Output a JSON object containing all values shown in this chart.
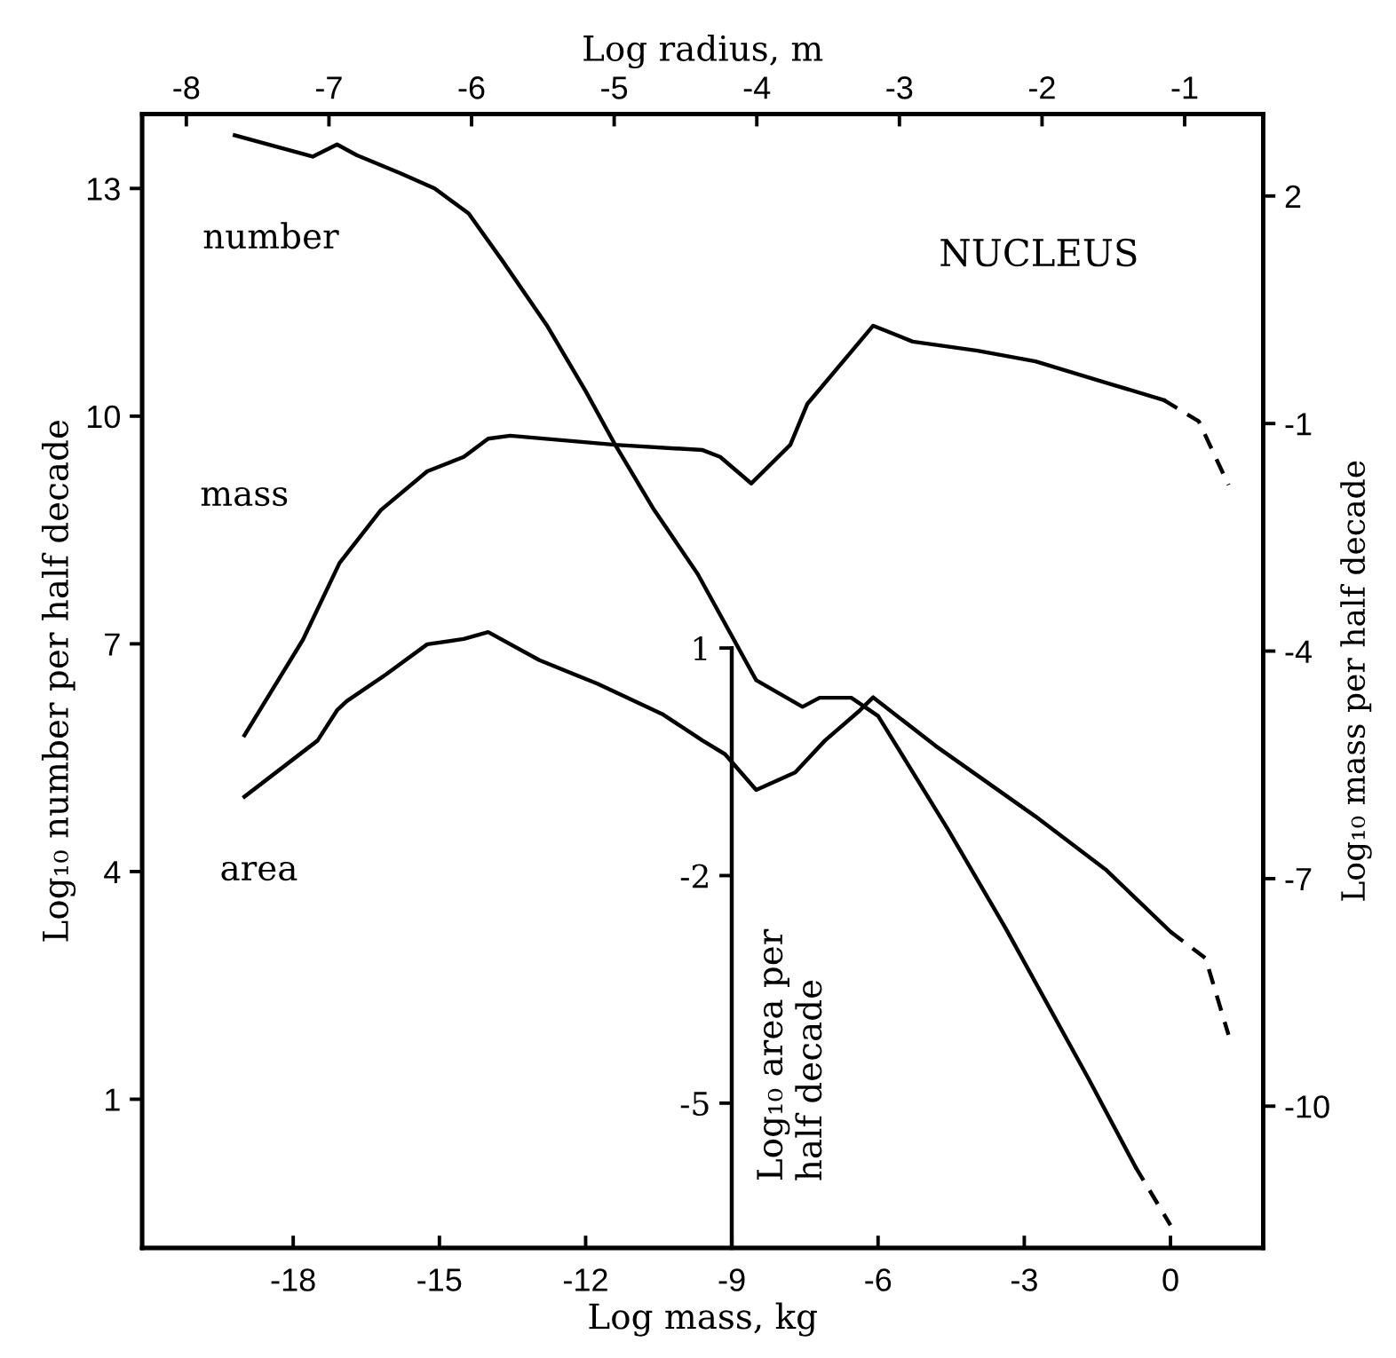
{
  "chart_data": {
    "type": "line",
    "xlabel": "Log mass, kg",
    "x2label": "Log radius, m",
    "ylabel": "Log₁₀ number per half decade",
    "y2label": "Log₁₀ mass per half decade",
    "y3label": "Log₁₀ area per\nhalf decade",
    "xlim": [
      -21.1,
      1.9
    ],
    "xticks": [
      -18,
      -15,
      -12,
      -9,
      -6,
      -3,
      0
    ],
    "x2lim": [
      -8.31,
      -0.45
    ],
    "x2ticks": [
      -8,
      -7,
      -6,
      -5,
      -4,
      -3,
      -2,
      -1
    ],
    "ylim": [
      -0.96,
      13.98
    ],
    "yticks": [
      1,
      4,
      7,
      10,
      13
    ],
    "y2lim": [
      -11.87,
      3.08
    ],
    "y2ticks": [
      -10,
      -7,
      -4,
      -1,
      2
    ],
    "y3lim": [
      -6.91,
      8.04
    ],
    "y3ticks": [
      -5,
      -2,
      1
    ],
    "annotations": [
      "NUCLEUS"
    ],
    "grid": false,
    "legend": false,
    "marker": "none",
    "series": [
      {
        "name": "number",
        "color": "#000000",
        "line_style": "solid",
        "x": [
          -19.2,
          -17.6,
          -17.1,
          -16.7,
          -15.8,
          -15.1,
          -14.4,
          -13.7,
          -12.8,
          -12.0,
          -11.4,
          -10.6,
          -9.7,
          -8.5,
          -7.55,
          -7.2,
          -6.55,
          -6.0,
          -4.57,
          -3.38,
          -1.69,
          -0.72
        ],
        "values": [
          13.7,
          13.42,
          13.58,
          13.44,
          13.2,
          13.0,
          12.67,
          12.04,
          11.2,
          10.33,
          9.63,
          8.77,
          7.92,
          6.52,
          6.17,
          6.29,
          6.29,
          6.05,
          4.56,
          3.25,
          1.28,
          0.11
        ]
      },
      {
        "color": "#000000",
        "line_style": "dashed",
        "x": [
          -0.72,
          0
        ],
        "values": [
          0.11,
          -0.66
        ]
      },
      {
        "name": "mass",
        "color": "#000000",
        "line_style": "solid",
        "axis": "y2",
        "x": [
          -19.0,
          -17.8,
          -17.05,
          -16.2,
          -15.25,
          -14.5,
          -14.0,
          -13.55,
          -11.4,
          -9.6,
          -9.24,
          -8.6,
          -7.8,
          -7.45,
          -6.1,
          -5.29,
          -3.96,
          -2.77,
          -1.33,
          -0.14
        ],
        "values": [
          -5.11,
          -3.85,
          -2.84,
          -2.14,
          -1.63,
          -1.44,
          -1.2,
          -1.16,
          -1.28,
          -1.35,
          -1.44,
          -1.79,
          -1.28,
          -0.74,
          0.29,
          0.08,
          -0.04,
          -0.18,
          -0.46,
          -0.69
        ]
      },
      {
        "color": "#000000",
        "line_style": "dashed",
        "axis": "y2",
        "x": [
          -0.14,
          0.58,
          1.19
        ],
        "values": [
          -0.69,
          -0.97,
          -1.81
        ]
      },
      {
        "name": "area",
        "color": "#000000",
        "line_style": "solid",
        "axis": "y3",
        "x": [
          -19.0,
          -17.5,
          -17.1,
          -16.9,
          -16.1,
          -15.25,
          -14.5,
          -14.0,
          -12.95,
          -11.76,
          -10.43,
          -9.6,
          -9.14,
          -8.5,
          -7.7,
          -7.09,
          -6.37,
          -6.1,
          -4.82,
          -2.77,
          -1.33,
          0
        ],
        "values": [
          -0.96,
          -0.22,
          0.18,
          0.3,
          0.65,
          1.05,
          1.12,
          1.21,
          0.84,
          0.53,
          0.13,
          -0.22,
          -0.4,
          -0.87,
          -0.64,
          -0.22,
          0.18,
          0.35,
          -0.29,
          -1.22,
          -1.92,
          -2.74
        ]
      },
      {
        "color": "#000000",
        "line_style": "dashed",
        "axis": "y3",
        "x": [
          0,
          0.72,
          1.19
        ],
        "values": [
          -2.74,
          -3.09,
          -4.1
        ]
      }
    ]
  }
}
